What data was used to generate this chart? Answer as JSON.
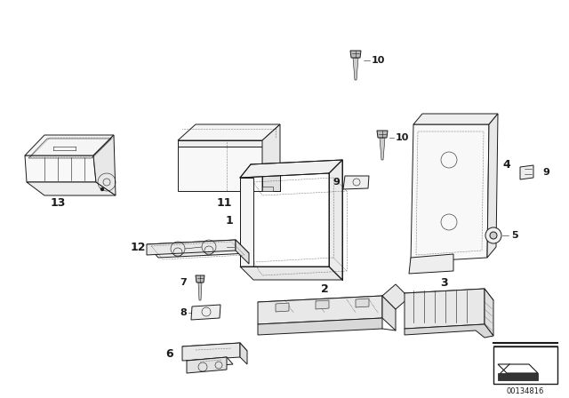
{
  "bg_color": "#ffffff",
  "line_color": "#1a1a1a",
  "diagram_id": "00134816",
  "figsize": [
    6.4,
    4.48
  ],
  "dpi": 100,
  "lw": 0.7,
  "lw_thin": 0.4,
  "lw_thick": 1.0
}
